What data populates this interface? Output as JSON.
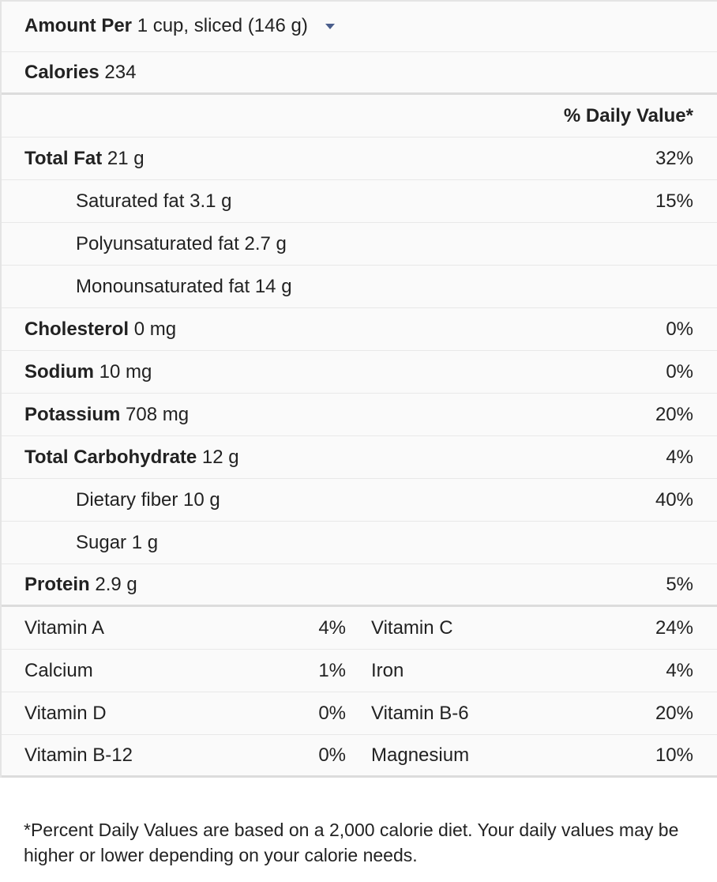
{
  "serving": {
    "label": "Amount Per",
    "value": "1 cup, sliced (146 g)"
  },
  "calories": {
    "label": "Calories",
    "value": "234"
  },
  "dv_header": "% Daily Value*",
  "nutrients": [
    {
      "name": "Total Fat",
      "amount": "21 g",
      "dv": "32%",
      "bold": true
    },
    {
      "name": "Saturated fat",
      "amount": "3.1 g",
      "dv": "15%",
      "bold": false
    },
    {
      "name": "Polyunsaturated fat",
      "amount": "2.7 g",
      "dv": "",
      "bold": false
    },
    {
      "name": "Monounsaturated fat",
      "amount": "14 g",
      "dv": "",
      "bold": false
    },
    {
      "name": "Cholesterol",
      "amount": "0 mg",
      "dv": "0%",
      "bold": true
    },
    {
      "name": "Sodium",
      "amount": "10 mg",
      "dv": "0%",
      "bold": true
    },
    {
      "name": "Potassium",
      "amount": "708 mg",
      "dv": "20%",
      "bold": true
    },
    {
      "name": "Total Carbohydrate",
      "amount": "12 g",
      "dv": "4%",
      "bold": true
    },
    {
      "name": "Dietary fiber",
      "amount": "10 g",
      "dv": "40%",
      "bold": false
    },
    {
      "name": "Sugar",
      "amount": "1 g",
      "dv": "",
      "bold": false
    },
    {
      "name": "Protein",
      "amount": "2.9 g",
      "dv": "5%",
      "bold": true
    }
  ],
  "vitamins": [
    {
      "a": "Vitamin A",
      "a_dv": "4%",
      "b": "Vitamin C",
      "b_dv": "24%"
    },
    {
      "a": "Calcium",
      "a_dv": "1%",
      "b": "Iron",
      "b_dv": "4%"
    },
    {
      "a": "Vitamin D",
      "a_dv": "0%",
      "b": "Vitamin B-6",
      "b_dv": "20%"
    },
    {
      "a": "Vitamin B-12",
      "a_dv": "0%",
      "b": "Magnesium",
      "b_dv": "10%"
    }
  ],
  "footnote": "*Percent Daily Values are based on a 2,000 calorie diet. Your daily values may be higher or lower depending on your calorie needs.",
  "colors": {
    "caret": "#4a5e8c",
    "panel_bg": "#fafafa",
    "divider": "#e8e8e8"
  },
  "icons": {
    "serving_dropdown": "caret-down-icon"
  }
}
